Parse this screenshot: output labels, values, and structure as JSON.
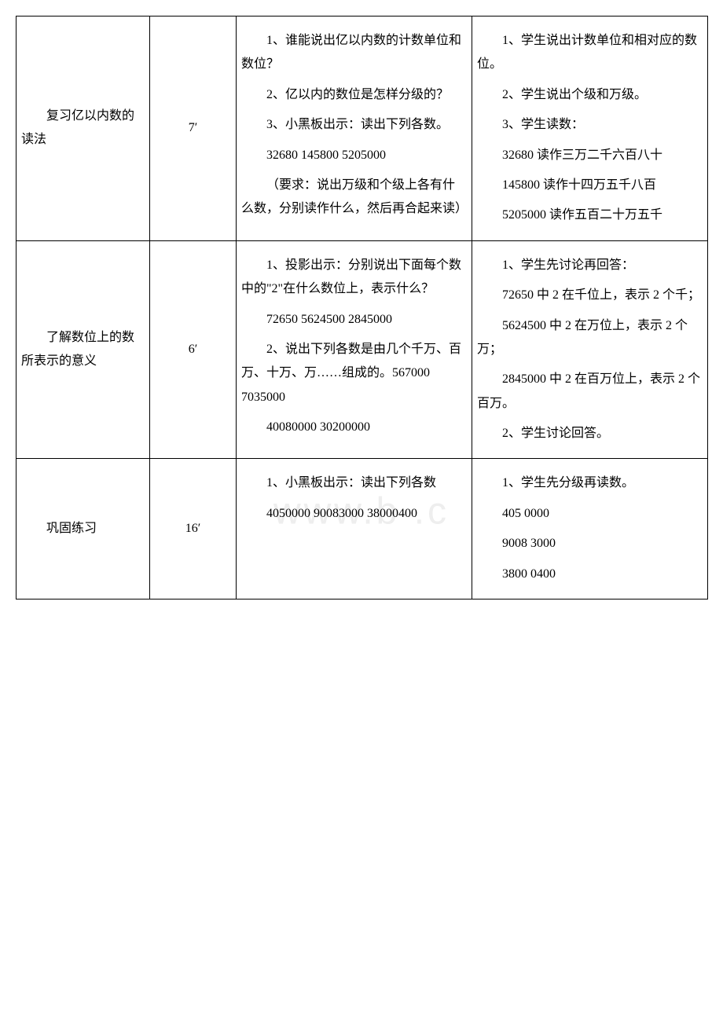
{
  "watermark": "www.b    .c",
  "table": {
    "columns": {
      "stage_width": 170,
      "time_width": 110,
      "teach_width": 300,
      "stud_width": 300
    },
    "rows": [
      {
        "stage_paras": [
          "复习亿以内数的读法"
        ],
        "time": "7′",
        "teach_paras": [
          "1、谁能说出亿以内数的计数单位和数位？",
          "2、亿以内的数位是怎样分级的？",
          "3、小黑板出示：读出下列各数。",
          "32680 145800 5205000",
          "（要求：说出万级和个级上各有什么数，分别读作什么，然后再合起来读）"
        ],
        "stud_paras": [
          "1、学生说出计数单位和相对应的数位。",
          "2、学生说出个级和万级。",
          "3、学生读数：",
          "32680 读作三万二千六百八十",
          "145800 读作十四万五千八百",
          "5205000 读作五百二十万五千"
        ]
      },
      {
        "stage_paras": [
          "了解数位上的数所表示的意义"
        ],
        "time": "6′",
        "teach_paras": [
          "1、投影出示：分别说出下面每个数中的\"2\"在什么数位上，表示什么？",
          "72650 5624500 2845000",
          " ",
          "2、说出下列各数是由几个千万、百万、十万、万……组成的。567000 7035000",
          "40080000 30200000"
        ],
        "stud_paras": [
          "1、学生先讨论再回答：",
          "72650 中 2 在千位上，表示 2 个千；",
          "5624500 中 2 在万位上，表示 2 个万；",
          "2845000 中 2 在百万位上，表示 2 个百万。",
          "2、学生讨论回答。"
        ]
      },
      {
        "stage_paras": [
          "巩固练习"
        ],
        "time": "16′",
        "teach_paras": [
          "1、小黑板出示：读出下列各数",
          "4050000 90083000 38000400"
        ],
        "stud_paras": [
          "1、学生先分级再读数。",
          "405 0000",
          "9008 3000",
          "3800 0400"
        ]
      }
    ]
  },
  "colors": {
    "text": "#000000",
    "border": "#000000",
    "background": "#ffffff",
    "watermark": "#eeeeee"
  },
  "typography": {
    "font_family": "SimSun",
    "font_size_pt": 12,
    "line_height": 1.9
  }
}
